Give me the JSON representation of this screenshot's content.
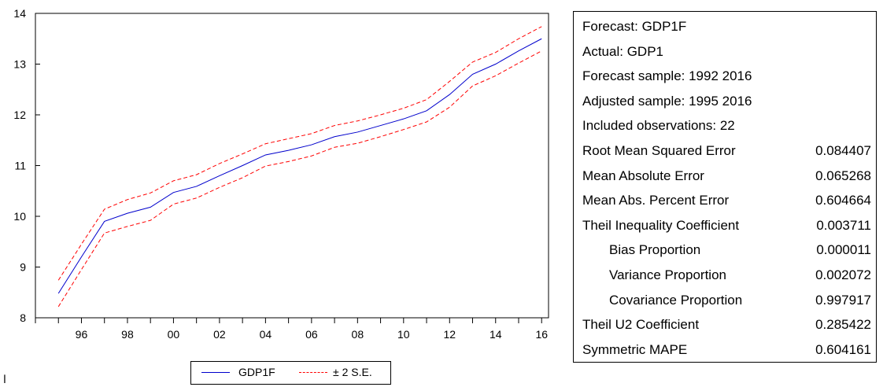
{
  "chart_data": {
    "type": "line",
    "x": [
      1995,
      1996,
      1997,
      1998,
      1999,
      2000,
      2001,
      2002,
      2003,
      2004,
      2005,
      2006,
      2007,
      2008,
      2009,
      2010,
      2011,
      2012,
      2013,
      2014,
      2015,
      2016
    ],
    "xlim": [
      1994,
      2016.3
    ],
    "ylim": [
      8,
      14
    ],
    "y_ticks": [
      8,
      9,
      10,
      11,
      12,
      13,
      14
    ],
    "x_ticks": [
      1996,
      1998,
      2000,
      2002,
      2004,
      2006,
      2008,
      2010,
      2012,
      2014,
      2016
    ],
    "x_tick_labels": [
      "96",
      "98",
      "00",
      "02",
      "04",
      "06",
      "08",
      "10",
      "12",
      "14",
      "16"
    ],
    "grid": false,
    "legend_position": "bottom",
    "series": [
      {
        "name": "GDP1F",
        "color": "#0000cc",
        "style": "solid",
        "values": [
          8.48,
          9.2,
          9.9,
          10.06,
          10.18,
          10.47,
          10.59,
          10.8,
          11.0,
          11.21,
          11.3,
          11.41,
          11.57,
          11.66,
          11.79,
          11.92,
          12.08,
          12.4,
          12.8,
          13.0,
          13.26,
          13.5
        ]
      },
      {
        "name": "± 2 S.E.",
        "color": "#ff0000",
        "style": "dashed",
        "values": [
          8.74,
          9.45,
          10.14,
          10.33,
          10.46,
          10.7,
          10.82,
          11.04,
          11.23,
          11.43,
          11.53,
          11.63,
          11.79,
          11.88,
          12.0,
          12.13,
          12.3,
          12.66,
          13.04,
          13.23,
          13.5,
          13.74
        ]
      },
      {
        "name": "± 2 S.E.",
        "color": "#ff0000",
        "style": "dashed",
        "lower": true,
        "values": [
          8.22,
          8.95,
          9.67,
          9.8,
          9.92,
          10.24,
          10.36,
          10.57,
          10.76,
          10.99,
          11.08,
          11.19,
          11.36,
          11.44,
          11.57,
          11.71,
          11.86,
          12.15,
          12.57,
          12.77,
          13.02,
          13.26
        ]
      }
    ]
  },
  "legend": {
    "forecast_label": "GDP1F",
    "se_label": "± 2 S.E."
  },
  "stats": [
    {
      "label": "Forecast: GDP1F",
      "value": ""
    },
    {
      "label": "Actual: GDP1",
      "value": ""
    },
    {
      "label": "Forecast sample: 1992 2016",
      "value": ""
    },
    {
      "label": "Adjusted sample: 1995 2016",
      "value": ""
    },
    {
      "label": "Included observations: 22",
      "value": ""
    },
    {
      "label": "Root Mean Squared Error",
      "value": "0.084407"
    },
    {
      "label": "Mean Absolute Error",
      "value": "0.065268"
    },
    {
      "label": "Mean Abs. Percent Error",
      "value": "0.604664"
    },
    {
      "label": "Theil Inequality Coefficient",
      "value": "0.003711"
    },
    {
      "label": "Bias Proportion",
      "value": "0.000011",
      "indent": true
    },
    {
      "label": "Variance Proportion",
      "value": "0.002072",
      "indent": true
    },
    {
      "label": "Covariance Proportion",
      "value": "0.997917",
      "indent": true
    },
    {
      "label": "Theil U2 Coefficient",
      "value": "0.285422"
    },
    {
      "label": "Symmetric MAPE",
      "value": "0.604161"
    }
  ],
  "side_mark": "ا"
}
